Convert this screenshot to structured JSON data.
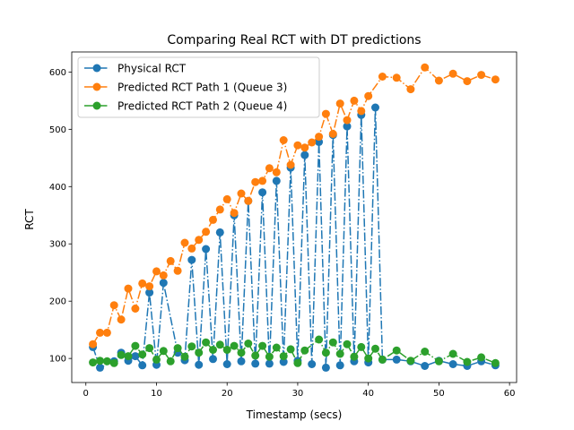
{
  "chart_data": {
    "type": "line",
    "title": "Comparing Real RCT with DT predictions",
    "xlabel": "Timestamp (secs)",
    "ylabel": "RCT",
    "xlim": [
      -2.0,
      61.0
    ],
    "ylim": [
      58,
      635
    ],
    "xticks": [
      0,
      10,
      20,
      30,
      40,
      50,
      60
    ],
    "yticks": [
      100,
      200,
      300,
      400,
      500,
      600
    ],
    "grid": false,
    "legend_position": "upper-left",
    "series": [
      {
        "name": "Physical RCT",
        "color": "#1f77b4",
        "linestyle": "dash-dot",
        "marker": "circle",
        "points": [
          [
            1,
            120
          ],
          [
            2,
            84
          ],
          [
            4,
            95
          ],
          [
            5,
            110
          ],
          [
            6,
            96
          ],
          [
            7,
            104
          ],
          [
            8,
            88
          ],
          [
            9,
            215
          ],
          [
            10,
            89
          ],
          [
            11,
            232
          ],
          [
            13,
            110
          ],
          [
            14,
            97
          ],
          [
            15,
            272
          ],
          [
            16,
            89
          ],
          [
            17,
            291
          ],
          [
            18,
            99
          ],
          [
            19,
            320
          ],
          [
            20,
            90
          ],
          [
            21,
            350
          ],
          [
            22,
            95
          ],
          [
            23,
            375
          ],
          [
            24,
            91
          ],
          [
            25,
            390
          ],
          [
            26,
            91
          ],
          [
            27,
            410
          ],
          [
            28,
            94
          ],
          [
            29,
            433
          ],
          [
            30,
            96
          ],
          [
            31,
            455
          ],
          [
            32,
            90
          ],
          [
            33,
            478
          ],
          [
            34,
            84
          ],
          [
            35,
            490
          ],
          [
            36,
            88
          ],
          [
            37,
            505
          ],
          [
            38,
            95
          ],
          [
            39,
            525
          ],
          [
            40,
            93
          ],
          [
            41,
            538
          ],
          [
            42,
            98
          ],
          [
            44,
            98
          ],
          [
            46,
            95
          ],
          [
            48,
            87
          ],
          [
            50,
            96
          ],
          [
            52,
            90
          ],
          [
            54,
            87
          ],
          [
            56,
            95
          ],
          [
            58,
            88
          ]
        ]
      },
      {
        "name": "Predicted RCT Path 1 (Queue 3)",
        "color": "#ff7f0e",
        "linestyle": "dash-dot",
        "marker": "circle",
        "points": [
          [
            1,
            125
          ],
          [
            2,
            145
          ],
          [
            3,
            145
          ],
          [
            4,
            193
          ],
          [
            5,
            168
          ],
          [
            6,
            222
          ],
          [
            7,
            187
          ],
          [
            8,
            231
          ],
          [
            9,
            226
          ],
          [
            10,
            252
          ],
          [
            11,
            245
          ],
          [
            12,
            270
          ],
          [
            13,
            253
          ],
          [
            14,
            302
          ],
          [
            15,
            292
          ],
          [
            16,
            307
          ],
          [
            17,
            321
          ],
          [
            18,
            342
          ],
          [
            19,
            360
          ],
          [
            20,
            378
          ],
          [
            21,
            354
          ],
          [
            22,
            388
          ],
          [
            23,
            375
          ],
          [
            24,
            408
          ],
          [
            25,
            410
          ],
          [
            26,
            432
          ],
          [
            27,
            425
          ],
          [
            28,
            481
          ],
          [
            29,
            438
          ],
          [
            30,
            472
          ],
          [
            31,
            468
          ],
          [
            32,
            477
          ],
          [
            33,
            487
          ],
          [
            34,
            527
          ],
          [
            35,
            492
          ],
          [
            36,
            545
          ],
          [
            37,
            516
          ],
          [
            38,
            550
          ],
          [
            39,
            532
          ],
          [
            40,
            558
          ],
          [
            42,
            592
          ],
          [
            44,
            590
          ],
          [
            46,
            570
          ],
          [
            48,
            608
          ],
          [
            50,
            585
          ],
          [
            52,
            597
          ],
          [
            54,
            584
          ],
          [
            56,
            595
          ],
          [
            58,
            587
          ]
        ]
      },
      {
        "name": "Predicted RCT Path 2 (Queue 4)",
        "color": "#2ca02c",
        "linestyle": "dash-dot",
        "marker": "circle",
        "points": [
          [
            1,
            93
          ],
          [
            2,
            96
          ],
          [
            3,
            95
          ],
          [
            4,
            92
          ],
          [
            5,
            106
          ],
          [
            6,
            104
          ],
          [
            7,
            122
          ],
          [
            8,
            107
          ],
          [
            9,
            118
          ],
          [
            10,
            98
          ],
          [
            11,
            113
          ],
          [
            12,
            95
          ],
          [
            13,
            118
          ],
          [
            14,
            103
          ],
          [
            15,
            121
          ],
          [
            16,
            110
          ],
          [
            17,
            128
          ],
          [
            18,
            115
          ],
          [
            19,
            124
          ],
          [
            20,
            115
          ],
          [
            21,
            122
          ],
          [
            22,
            110
          ],
          [
            23,
            126
          ],
          [
            24,
            105
          ],
          [
            25,
            122
          ],
          [
            26,
            103
          ],
          [
            27,
            119
          ],
          [
            28,
            104
          ],
          [
            29,
            116
          ],
          [
            30,
            92
          ],
          [
            31,
            114
          ],
          [
            33,
            133
          ],
          [
            34,
            110
          ],
          [
            35,
            128
          ],
          [
            36,
            108
          ],
          [
            37,
            125
          ],
          [
            38,
            103
          ],
          [
            39,
            120
          ],
          [
            40,
            100
          ],
          [
            41,
            117
          ],
          [
            42,
            98
          ],
          [
            44,
            114
          ],
          [
            46,
            96
          ],
          [
            48,
            112
          ],
          [
            50,
            95
          ],
          [
            52,
            108
          ],
          [
            54,
            94
          ],
          [
            56,
            102
          ],
          [
            58,
            92
          ]
        ]
      }
    ]
  }
}
